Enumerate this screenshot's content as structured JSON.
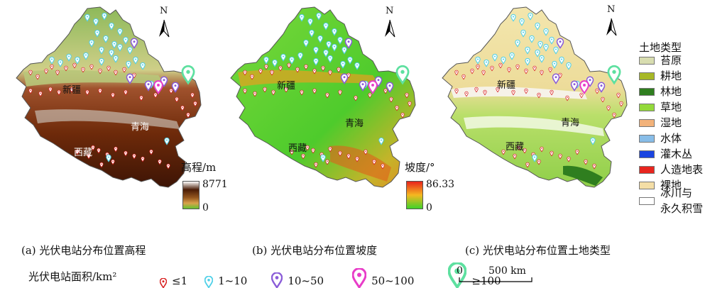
{
  "maps": [
    {
      "id": "elev",
      "caption": "(a) 光伏电站分布位置高程",
      "region_xinjiang": "新疆",
      "region_qinghai": "青海",
      "region_xizang": "西藏",
      "legend_title": "高程/m",
      "legend_max": "8771",
      "legend_min": "0",
      "colors": [
        "#ffffff",
        "#4a1c06",
        "#96581f",
        "#d9a04a",
        "#65c230"
      ]
    },
    {
      "id": "slope",
      "caption": "(b) 光伏电站分布位置坡度",
      "region_xinjiang": "新疆",
      "region_qinghai": "青海",
      "region_xizang": "西藏",
      "legend_title": "坡度/°",
      "legend_max": "86.33",
      "legend_min": "0",
      "colors": [
        "#e8231b",
        "#f5b820",
        "#3fd22a"
      ]
    },
    {
      "id": "landcover",
      "caption": "(c) 光伏电站分布位置土地类型",
      "region_xinjiang": "新疆",
      "region_qinghai": "青海",
      "region_xizang": "西藏"
    }
  ],
  "north_label": "N",
  "landcover_legend": {
    "title": "土地类型",
    "items": [
      {
        "label": "苔原",
        "color": "#d8ddb0"
      },
      {
        "label": "耕地",
        "color": "#a7b826"
      },
      {
        "label": "林地",
        "color": "#2f7e1f"
      },
      {
        "label": "草地",
        "color": "#93d93a"
      },
      {
        "label": "湿地",
        "color": "#f2b27a"
      },
      {
        "label": "水体",
        "color": "#88bde8"
      },
      {
        "label": "灌木丛",
        "color": "#1b45e0"
      },
      {
        "label": "人造地表",
        "color": "#e8251e"
      },
      {
        "label": "裸地",
        "color": "#f4dea6"
      },
      {
        "label": "冰川与\n永久积雪",
        "color": "#ffffff"
      }
    ]
  },
  "size_legend": {
    "title": "光伏电站面积/km²",
    "classes": [
      {
        "label": "≤1",
        "color": "#d82020"
      },
      {
        "label": "1~10",
        "color": "#4fd0e8"
      },
      {
        "label": "10~50",
        "color": "#8a5cd8"
      },
      {
        "label": "50~100",
        "color": "#e83cc8"
      },
      {
        "label": "≥100",
        "color": "#5ee0a0"
      }
    ]
  },
  "scale_bar": {
    "zero": "0",
    "label": "500 km"
  }
}
